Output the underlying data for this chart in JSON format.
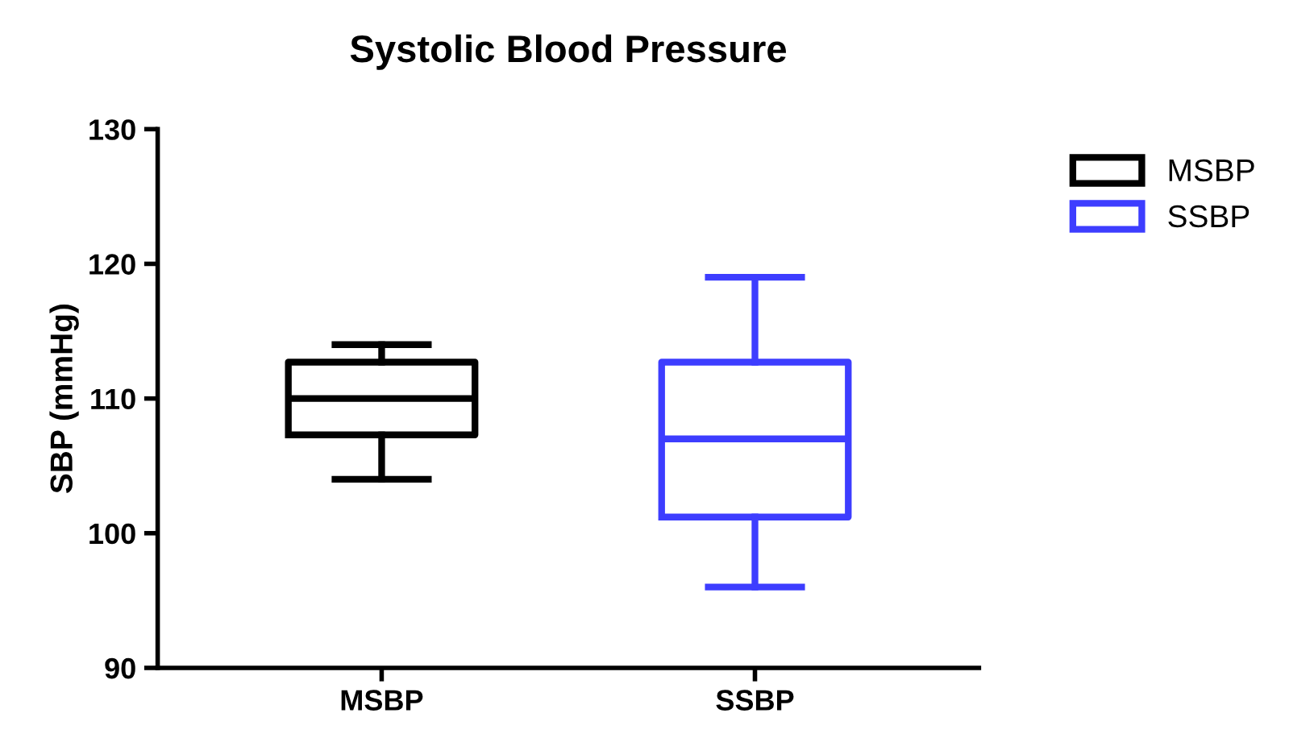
{
  "chart_data": {
    "type": "box",
    "title": "Systolic Blood Pressure",
    "ylabel": "SBP (mmHg)",
    "categories": [
      "MSBP",
      "SSBP"
    ],
    "series": [
      {
        "name": "MSBP",
        "color": "#000000",
        "boxes": [
          {
            "low": 104,
            "q1": 107.3,
            "median": 110,
            "q3": 112.7,
            "high": 114
          },
          null
        ]
      },
      {
        "name": "SSBP",
        "color": "#3d3dff",
        "boxes": [
          null,
          {
            "low": 96,
            "q1": 101.2,
            "median": 107,
            "q3": 112.7,
            "high": 119
          }
        ]
      }
    ],
    "ylim": [
      90,
      130
    ],
    "yticks": [
      90,
      100,
      110,
      120,
      130
    ],
    "grid": false,
    "legend": "top right"
  }
}
